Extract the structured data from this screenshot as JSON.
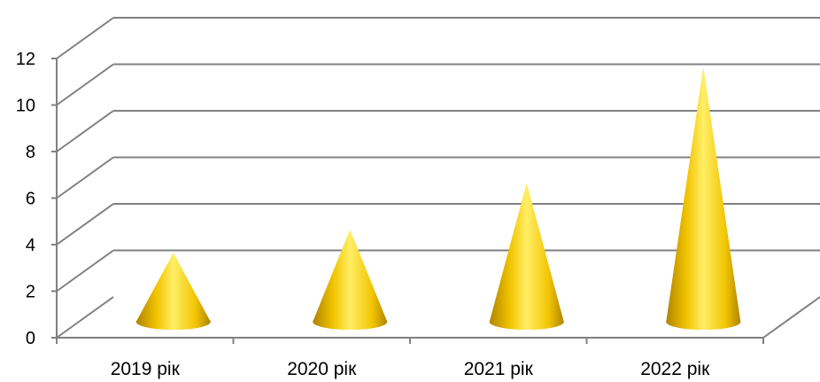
{
  "chart_data": {
    "type": "bar",
    "bar_shape": "cone",
    "style": "3d",
    "categories": [
      "2019 рік",
      "2020 рік",
      "2021 рік",
      "2022 рік"
    ],
    "values": [
      3,
      4,
      6,
      11
    ],
    "ylim": [
      0,
      12
    ],
    "yticks": [
      "0",
      "2",
      "4",
      "6",
      "8",
      "10",
      "12"
    ],
    "title": "",
    "xlabel": "",
    "ylabel": "",
    "grid": true,
    "legend": "none",
    "colors": {
      "bar_light": "#ffee66",
      "bar_mid": "#f2c500",
      "bar_dark": "#b08400",
      "gridline": "#808080",
      "axis": "#808080"
    }
  }
}
